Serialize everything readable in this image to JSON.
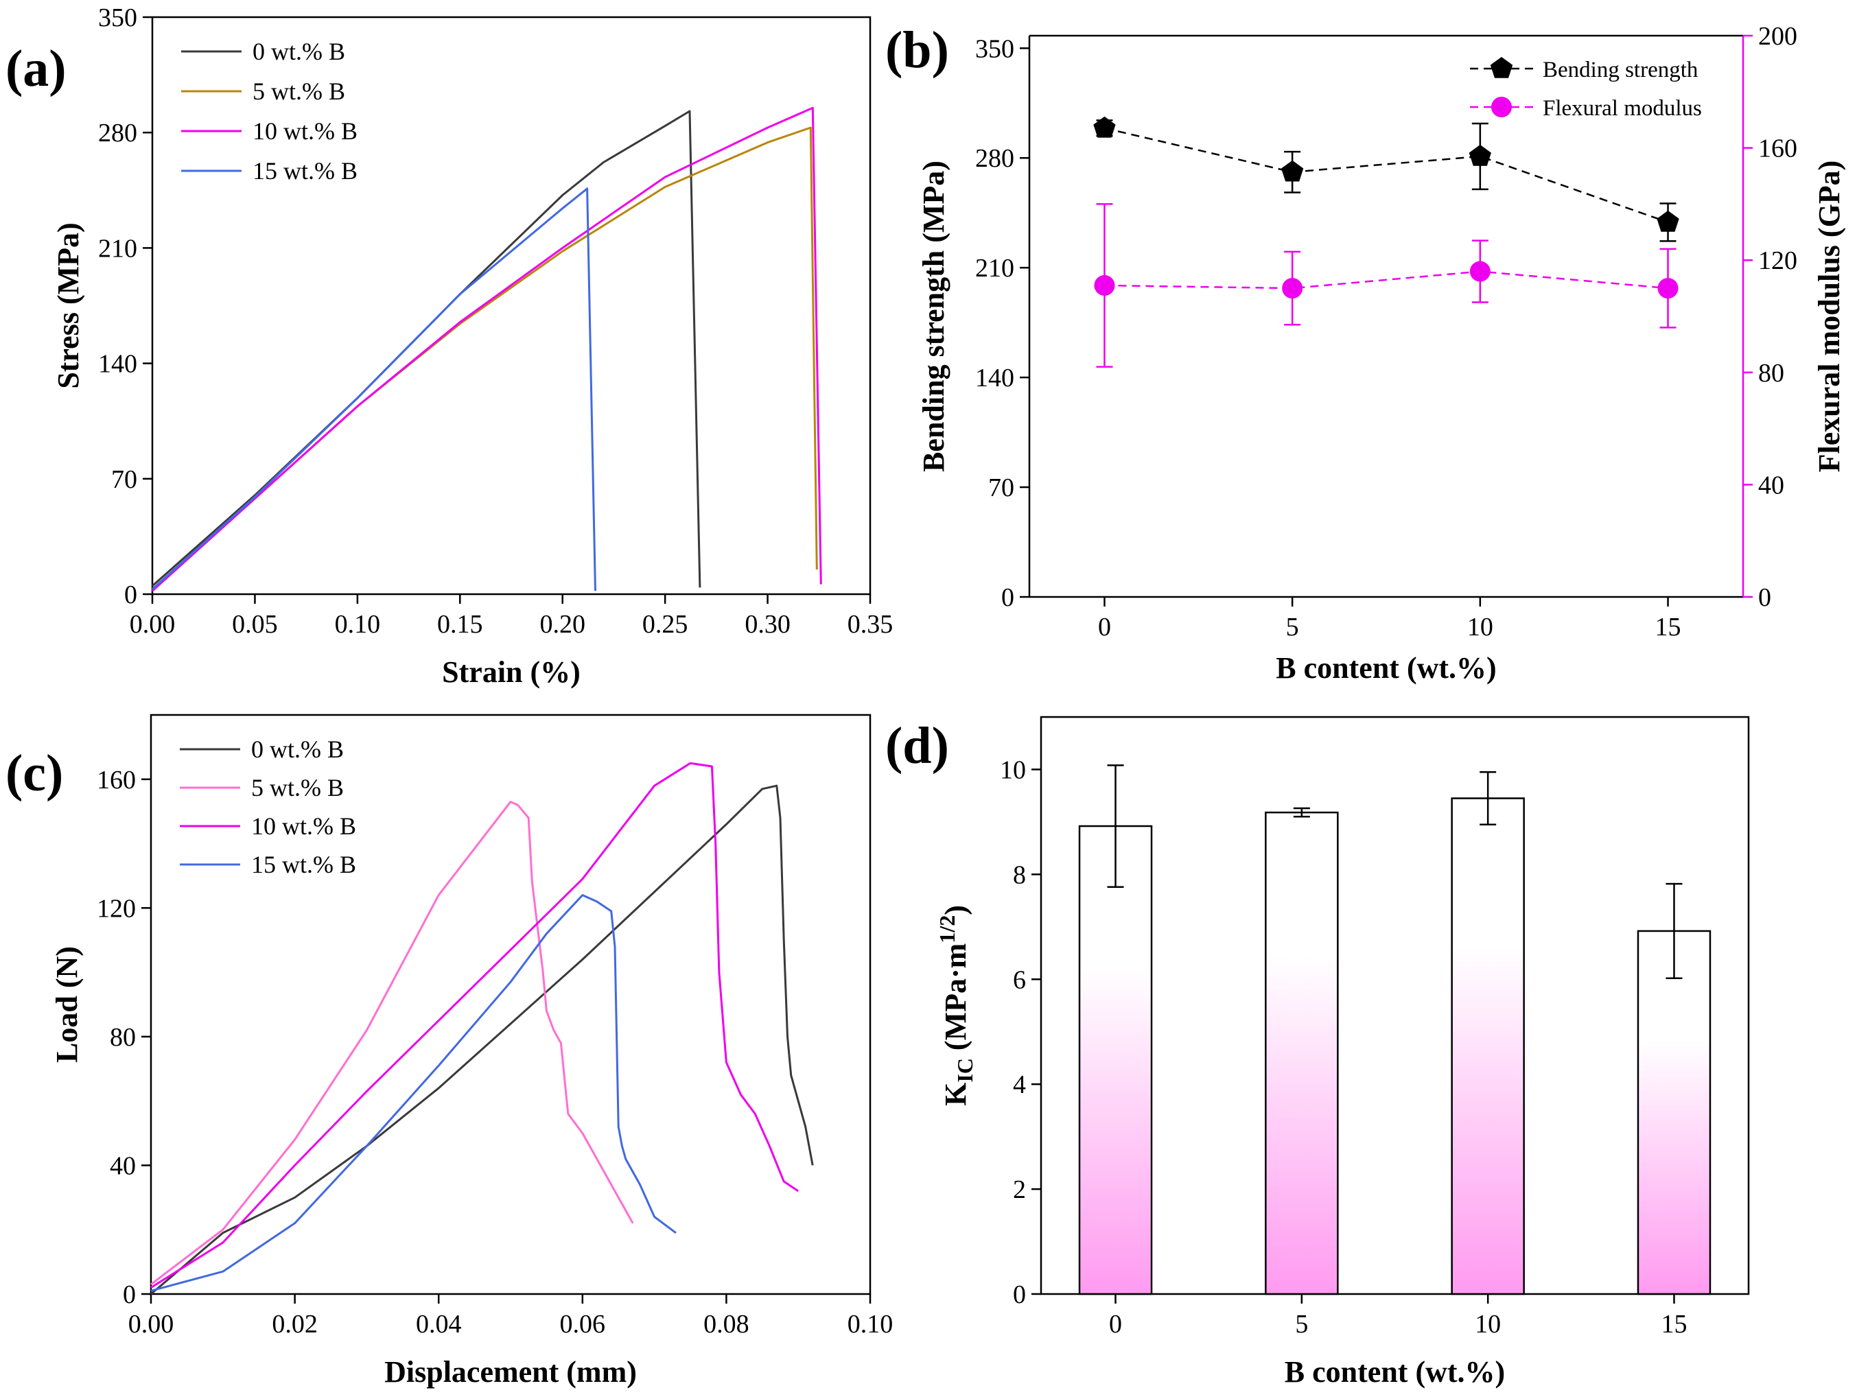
{
  "colors": {
    "black": "#3a3a3a",
    "brown": "#b8860b",
    "magenta": "#ee00ee",
    "pink": "#ff6fd0",
    "blue": "#4169e1",
    "bar_top": "#ffffff",
    "bar_bottom": "#ff9bf0"
  },
  "chart_data": [
    {
      "id": "a",
      "type": "line",
      "panel_label": "(a)",
      "xlabel": "Strain (%)",
      "ylabel": "Stress (MPa)",
      "xlim": [
        0,
        0.35
      ],
      "ylim": [
        0,
        350
      ],
      "xticks": [
        "0.00",
        "0.05",
        "0.10",
        "0.15",
        "0.20",
        "0.25",
        "0.30",
        "0.35"
      ],
      "yticks": [
        "0",
        "70",
        "140",
        "210",
        "280",
        "350"
      ],
      "series": [
        {
          "name": "0 wt.% B",
          "color": "#3a3a3a",
          "x": [
            0.0,
            0.05,
            0.1,
            0.15,
            0.2,
            0.22,
            0.25,
            0.262,
            0.267
          ],
          "y": [
            5,
            60,
            119,
            182,
            242,
            262,
            284,
            293,
            4
          ]
        },
        {
          "name": "5 wt.% B",
          "color": "#b8860b",
          "x": [
            0.0,
            0.05,
            0.1,
            0.15,
            0.2,
            0.25,
            0.3,
            0.321,
            0.324
          ],
          "y": [
            3,
            58,
            114,
            164,
            208,
            247,
            274,
            283,
            15
          ]
        },
        {
          "name": "10 wt.% B",
          "color": "#ee00ee",
          "x": [
            0.0,
            0.05,
            0.1,
            0.15,
            0.2,
            0.25,
            0.3,
            0.322,
            0.326
          ],
          "y": [
            2,
            58,
            114,
            165,
            210,
            253,
            283,
            295,
            6
          ]
        },
        {
          "name": "15 wt.% B",
          "color": "#4169e1",
          "x": [
            0.0,
            0.05,
            0.1,
            0.15,
            0.2,
            0.212,
            0.216
          ],
          "y": [
            3,
            59,
            119,
            182,
            234,
            246,
            2
          ]
        }
      ]
    },
    {
      "id": "b",
      "type": "line",
      "panel_label": "(b)",
      "xlabel": "B content (wt.%)",
      "ylabel": "Bending strength (MPa)",
      "y2label": "Flexural modulus (GPa)",
      "xlim": [
        -2,
        17
      ],
      "ylim": [
        0,
        358
      ],
      "y2lim": [
        0,
        200
      ],
      "xticks": [
        "0",
        "5",
        "10",
        "15"
      ],
      "yticks": [
        "0",
        "70",
        "140",
        "210",
        "280",
        "350"
      ],
      "y2ticks": [
        "0",
        "40",
        "80",
        "120",
        "160",
        "200"
      ],
      "categories": [
        "0",
        "5",
        "10",
        "15"
      ],
      "series": [
        {
          "name": "Bending strength",
          "axis": "left",
          "color": "#000000",
          "marker": "pentagon",
          "values": [
            299,
            271,
            281,
            239
          ],
          "errors": [
            5,
            13,
            21,
            12
          ]
        },
        {
          "name": "Flexural modulus",
          "axis": "right",
          "color": "#ee00ee",
          "marker": "circle",
          "values": [
            111,
            110,
            116,
            110
          ],
          "errors": [
            29,
            13,
            11,
            14
          ]
        }
      ]
    },
    {
      "id": "c",
      "type": "line",
      "panel_label": "(c)",
      "xlabel": "Displacement (mm)",
      "ylabel": "Load (N)",
      "xlim": [
        0,
        0.1
      ],
      "ylim": [
        0,
        180
      ],
      "xticks": [
        "0.00",
        "0.02",
        "0.04",
        "0.06",
        "0.08",
        "0.10"
      ],
      "yticks": [
        "0",
        "40",
        "80",
        "120",
        "160"
      ],
      "series": [
        {
          "name": "0 wt.% B",
          "color": "#3a3a3a",
          "x": [
            0.0,
            0.01,
            0.02,
            0.03,
            0.04,
            0.05,
            0.06,
            0.07,
            0.08,
            0.085,
            0.087,
            0.0875,
            0.088,
            0.0885,
            0.089,
            0.09,
            0.091,
            0.092
          ],
          "y": [
            0,
            19,
            30,
            46,
            64,
            84,
            104,
            125,
            146,
            157,
            158,
            148,
            110,
            80,
            68,
            60,
            52,
            40
          ]
        },
        {
          "name": "5 wt.% B",
          "color": "#ff6fd0",
          "x": [
            0.0,
            0.01,
            0.02,
            0.03,
            0.04,
            0.05,
            0.051,
            0.0525,
            0.053,
            0.0545,
            0.055,
            0.056,
            0.057,
            0.058,
            0.059,
            0.06,
            0.062,
            0.064,
            0.067
          ],
          "y": [
            3,
            20,
            48,
            82,
            124,
            153,
            152,
            148,
            128,
            100,
            88,
            82,
            78,
            56,
            53,
            50,
            42,
            34,
            22
          ]
        },
        {
          "name": "10 wt.% B",
          "color": "#ee00ee",
          "x": [
            0.0,
            0.01,
            0.02,
            0.03,
            0.04,
            0.05,
            0.06,
            0.07,
            0.075,
            0.078,
            0.0785,
            0.079,
            0.08,
            0.082,
            0.084,
            0.086,
            0.088,
            0.09
          ],
          "y": [
            2,
            16,
            40,
            63,
            85,
            107,
            129,
            158,
            165,
            164,
            140,
            100,
            72,
            62,
            56,
            46,
            35,
            32
          ]
        },
        {
          "name": "15 wt.% B",
          "color": "#4169e1",
          "x": [
            0.0,
            0.01,
            0.02,
            0.03,
            0.04,
            0.05,
            0.055,
            0.06,
            0.062,
            0.064,
            0.0645,
            0.065,
            0.0655,
            0.066,
            0.068,
            0.07,
            0.073
          ],
          "y": [
            1,
            7,
            22,
            46,
            71,
            97,
            112,
            124,
            122,
            119,
            108,
            52,
            46,
            42,
            34,
            24,
            19
          ]
        }
      ]
    },
    {
      "id": "d",
      "type": "bar",
      "panel_label": "(d)",
      "xlabel": "B content (wt.%)",
      "ylabel_main": "K",
      "ylabel_sub": "IC",
      "ylabel_unit": " (MPa·m",
      "ylabel_sup": "1/2",
      "ylabel_close": ")",
      "xlim": [
        -2,
        17
      ],
      "ylim": [
        0,
        11
      ],
      "xticks": [
        "0",
        "5",
        "10",
        "15"
      ],
      "yticks": [
        "0",
        "2",
        "4",
        "6",
        "8",
        "10"
      ],
      "categories": [
        "0",
        "5",
        "10",
        "15"
      ],
      "values": [
        8.92,
        9.18,
        9.45,
        6.92
      ],
      "errors": [
        1.16,
        0.08,
        0.5,
        0.9
      ]
    }
  ]
}
